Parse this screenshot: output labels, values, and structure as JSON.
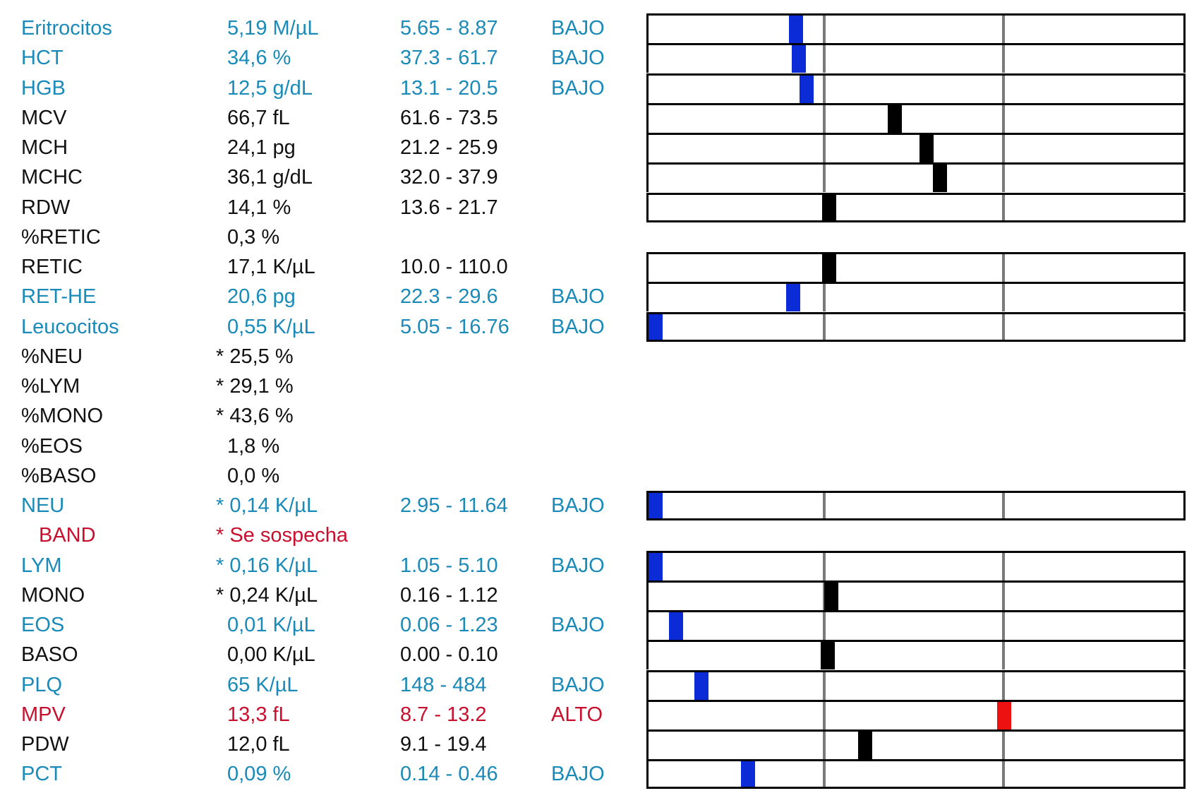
{
  "colors": {
    "low": "#1a8ab8",
    "normal": "#111111",
    "high": "#c8102e",
    "marker_low": "#0a2bd6",
    "marker_normal": "#000000",
    "marker_high": "#ee1111"
  },
  "results": [
    {
      "name": "Eritrocitos",
      "value": "5,19 M/µL",
      "range": "5.65 - 8.87",
      "status": "BAJO",
      "level": "low",
      "gauge": true,
      "marker_pos": 0.27
    },
    {
      "name": "HCT",
      "value": "34,6 %",
      "range": "37.3 - 61.7",
      "status": "BAJO",
      "level": "low",
      "gauge": true,
      "marker_pos": 0.275
    },
    {
      "name": "HGB",
      "value": "12,5 g/dL",
      "range": "13.1 - 20.5",
      "status": "BAJO",
      "level": "low",
      "gauge": true,
      "marker_pos": 0.29
    },
    {
      "name": "MCV",
      "value": "66,7 fL",
      "range": "61.6 - 73.5",
      "status": "",
      "level": "normal",
      "gauge": true,
      "marker_pos": 0.46
    },
    {
      "name": "MCH",
      "value": "24,1 pg",
      "range": "21.2 - 25.9",
      "status": "",
      "level": "normal",
      "gauge": true,
      "marker_pos": 0.52
    },
    {
      "name": "MCHC",
      "value": "36,1 g/dL",
      "range": "32.0 - 37.9",
      "status": "",
      "level": "normal",
      "gauge": true,
      "marker_pos": 0.546
    },
    {
      "name": "RDW",
      "value": "14,1 %",
      "range": "13.6 - 21.7",
      "status": "",
      "level": "normal",
      "gauge": true,
      "gauge_end": true,
      "marker_pos": 0.334
    },
    {
      "name": "%RETIC",
      "value": "0,3 %",
      "range": "",
      "status": "",
      "level": "normal",
      "gauge": false
    },
    {
      "name": "RETIC",
      "value": "17,1 K/µL",
      "range": "10.0 - 110.0",
      "status": "",
      "level": "normal",
      "gauge": true,
      "marker_pos": 0.334
    },
    {
      "name": "RET-HE",
      "value": "20,6 pg",
      "range": "22.3 - 29.6",
      "status": "BAJO",
      "level": "low",
      "gauge": true,
      "marker_pos": 0.264
    },
    {
      "name": "Leucocitos",
      "value": "0,55 K/µL",
      "range": "5.05 - 16.76",
      "status": "BAJO",
      "level": "low",
      "gauge": true,
      "gauge_end": true,
      "marker_pos": 0.0
    },
    {
      "name": "%NEU",
      "value": "* 25,5 %",
      "range": "",
      "status": "",
      "level": "normal",
      "gauge": false,
      "flagged": true
    },
    {
      "name": "%LYM",
      "value": "* 29,1 %",
      "range": "",
      "status": "",
      "level": "normal",
      "gauge": false,
      "flagged": true
    },
    {
      "name": "%MONO",
      "value": "* 43,6 %",
      "range": "",
      "status": "",
      "level": "normal",
      "gauge": false,
      "flagged": true
    },
    {
      "name": "%EOS",
      "value": "1,8 %",
      "range": "",
      "status": "",
      "level": "normal",
      "gauge": false
    },
    {
      "name": "%BASO",
      "value": "0,0 %",
      "range": "",
      "status": "",
      "level": "normal",
      "gauge": false
    },
    {
      "name": "NEU",
      "value": "* 0,14 K/µL",
      "range": "2.95 - 11.64",
      "status": "BAJO",
      "level": "low",
      "gauge": true,
      "gauge_end": true,
      "flagged": true,
      "marker_pos": 0.0
    },
    {
      "name": "BAND",
      "value": "* Se sospecha",
      "range": "",
      "status": "",
      "level": "high",
      "gauge": false,
      "flagged": true,
      "indent": true
    },
    {
      "name": "LYM",
      "value": "* 0,16 K/µL",
      "range": "1.05 - 5.10",
      "status": "BAJO",
      "level": "low",
      "gauge": true,
      "flagged": true,
      "marker_pos": 0.0
    },
    {
      "name": "MONO",
      "value": "* 0,24 K/µL",
      "range": "0.16 - 1.12",
      "status": "",
      "level": "normal",
      "gauge": true,
      "flagged": true,
      "marker_pos": 0.338
    },
    {
      "name": "EOS",
      "value": "0,01 K/µL",
      "range": "0.06 - 1.23",
      "status": "BAJO",
      "level": "low",
      "gauge": true,
      "marker_pos": 0.039
    },
    {
      "name": "BASO",
      "value": "0,00 K/µL",
      "range": "0.00 - 0.10",
      "status": "",
      "level": "normal",
      "gauge": true,
      "marker_pos": 0.33
    },
    {
      "name": "PLQ",
      "value": "65 K/µL",
      "range": "148 - 484",
      "status": "BAJO",
      "level": "low",
      "gauge": true,
      "marker_pos": 0.088
    },
    {
      "name": "MPV",
      "value": "13,3 fL",
      "range": "8.7 - 13.2",
      "status": "ALTO",
      "level": "high",
      "gauge": true,
      "marker_pos": 0.669
    },
    {
      "name": "PDW",
      "value": "12,0 fL",
      "range": "9.1 - 19.4",
      "status": "",
      "level": "normal",
      "gauge": true,
      "marker_pos": 0.402
    },
    {
      "name": "PCT",
      "value": "0,09 %",
      "range": "0.14 - 0.46",
      "status": "BAJO",
      "level": "low",
      "gauge": true,
      "gauge_end": true,
      "marker_pos": 0.178
    }
  ]
}
